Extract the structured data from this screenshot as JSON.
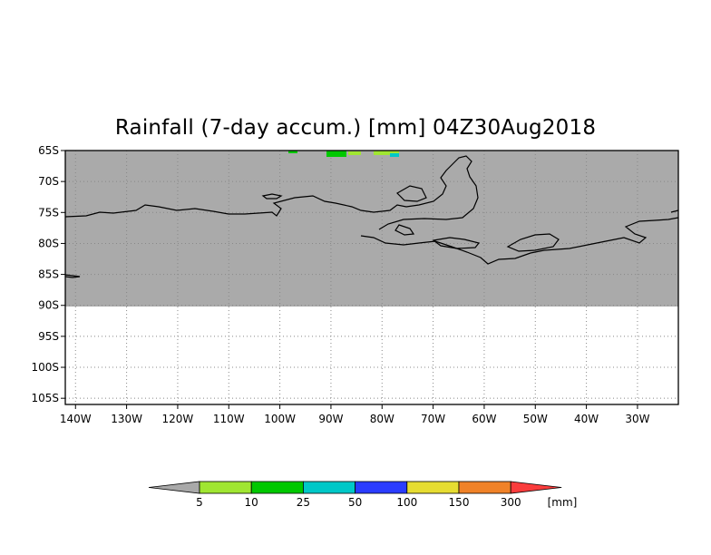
{
  "title": "Rainfall (7-day accum.) [mm] 04Z30Aug2018",
  "map": {
    "region": "Antarctica (Antarctic Peninsula / West Antarctica)",
    "lat_labels": [
      "65S",
      "70S",
      "75S",
      "80S",
      "85S",
      "90S",
      "95S",
      "100S",
      "105S"
    ],
    "lon_labels": [
      "140W",
      "130W",
      "120W",
      "110W",
      "100W",
      "90W",
      "80W",
      "70W",
      "60W",
      "50W",
      "40W",
      "30W"
    ],
    "lat_range": [
      -106,
      -65
    ],
    "lon_range": [
      -142,
      -22
    ],
    "masked_color": "#aaaaaa",
    "coastline_color": "#000000",
    "grid": "dotted"
  },
  "colorbar": {
    "labels": [
      "5",
      "10",
      "25",
      "50",
      "100",
      "150",
      "300"
    ],
    "unit": "[mm]",
    "colors": [
      "#a9a9a9",
      "#a0e632",
      "#00c800",
      "#00c8c8",
      "#2a3cff",
      "#e6dc32",
      "#f08228",
      "#fa3c3c"
    ]
  }
}
